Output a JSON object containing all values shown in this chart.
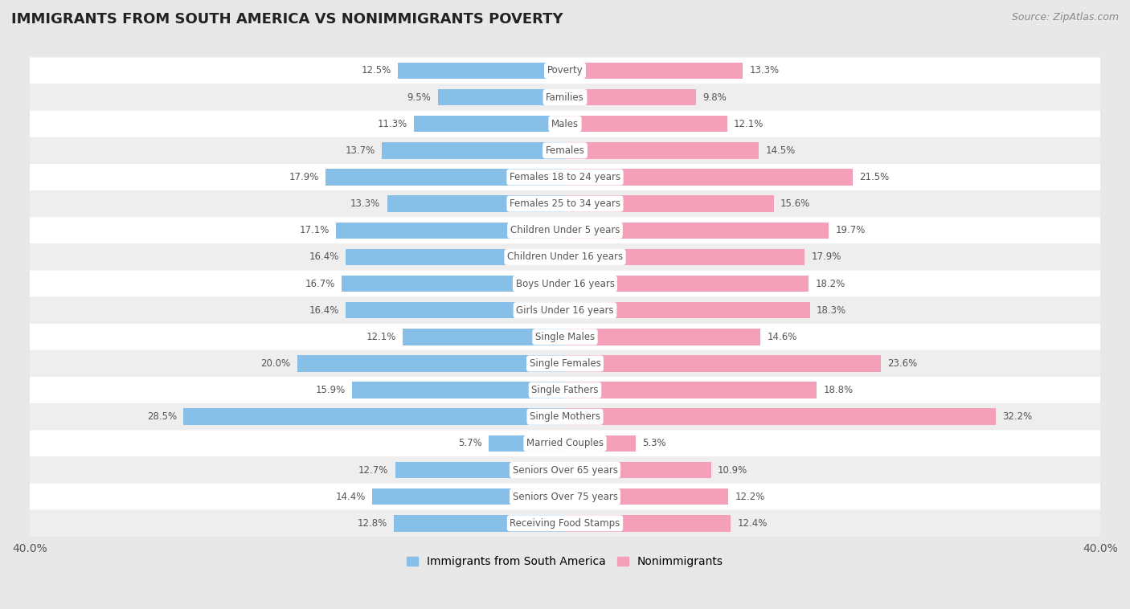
{
  "title": "IMMIGRANTS FROM SOUTH AMERICA VS NONIMMIGRANTS POVERTY",
  "source": "Source: ZipAtlas.com",
  "categories": [
    "Poverty",
    "Families",
    "Males",
    "Females",
    "Females 18 to 24 years",
    "Females 25 to 34 years",
    "Children Under 5 years",
    "Children Under 16 years",
    "Boys Under 16 years",
    "Girls Under 16 years",
    "Single Males",
    "Single Females",
    "Single Fathers",
    "Single Mothers",
    "Married Couples",
    "Seniors Over 65 years",
    "Seniors Over 75 years",
    "Receiving Food Stamps"
  ],
  "immigrants": [
    12.5,
    9.5,
    11.3,
    13.7,
    17.9,
    13.3,
    17.1,
    16.4,
    16.7,
    16.4,
    12.1,
    20.0,
    15.9,
    28.5,
    5.7,
    12.7,
    14.4,
    12.8
  ],
  "nonimmigrants": [
    13.3,
    9.8,
    12.1,
    14.5,
    21.5,
    15.6,
    19.7,
    17.9,
    18.2,
    18.3,
    14.6,
    23.6,
    18.8,
    32.2,
    5.3,
    10.9,
    12.2,
    12.4
  ],
  "immigrant_color": "#88bfe8",
  "nonimmigrant_color": "#f4a0b8",
  "row_colors": [
    "#ffffff",
    "#eeeeee"
  ],
  "outer_bg": "#e8e8e8",
  "xlim": 40.0,
  "bar_height": 0.62,
  "label_pill_color": "#ffffff",
  "label_text_color": "#555555",
  "value_text_color": "#555555",
  "legend_label_immigrants": "Immigrants from South America",
  "legend_label_nonimmigrants": "Nonimmigrants",
  "title_fontsize": 13,
  "source_fontsize": 9,
  "label_fontsize": 8.5,
  "value_fontsize": 8.5
}
